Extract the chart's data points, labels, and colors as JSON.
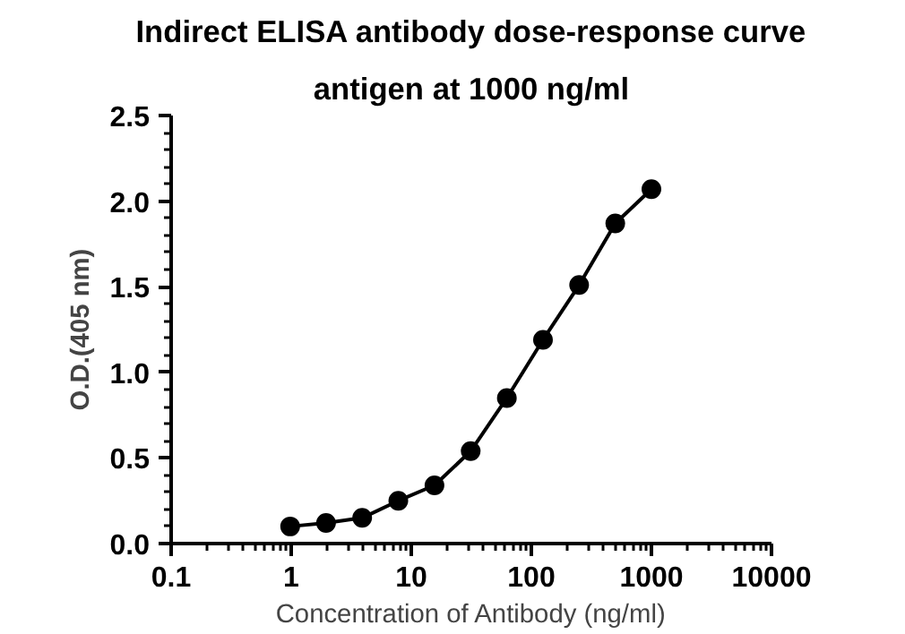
{
  "chart_data": {
    "type": "line",
    "title": "Indirect ELISA antibody dose-response curve",
    "subtitle": "antigen at 1000 ng/ml",
    "xlabel": "Concentration of Antibody (ng/ml)",
    "ylabel": "O.D.(405 nm)",
    "x": [
      0.98,
      1.95,
      3.9,
      7.8,
      15.6,
      31.25,
      62.5,
      125,
      250,
      500,
      1000
    ],
    "series": [
      {
        "color": "#000000",
        "values": [
          0.1,
          0.12,
          0.15,
          0.25,
          0.34,
          0.54,
          0.85,
          1.19,
          1.51,
          1.87,
          2.07
        ]
      }
    ],
    "log": "x",
    "xlim": [
      0.1,
      10000
    ],
    "xticks": [
      0.1,
      1,
      10,
      100,
      1000,
      10000
    ],
    "ylim": [
      0,
      2.5
    ],
    "yticks": [
      {
        "value": 0,
        "label": "0.0"
      },
      0.5,
      {
        "value": 1,
        "label": "1.0"
      },
      1.5,
      {
        "value": 2,
        "label": "2.0"
      },
      2.5
    ],
    "grid": false,
    "marker": "circle",
    "line_style": "solid"
  }
}
